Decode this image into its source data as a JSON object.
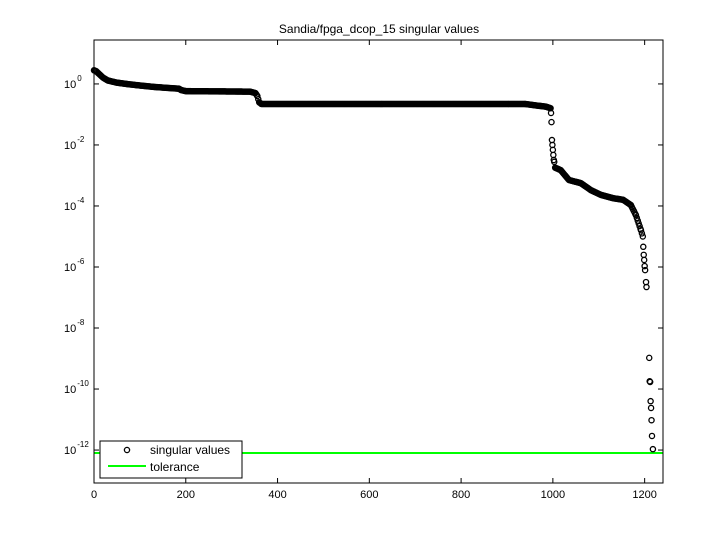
{
  "chart_data": {
    "type": "scatter",
    "title": "Sandia/fpga_dcop_15 singular values",
    "xlabel": "",
    "ylabel": "",
    "xlim": [
      0,
      1240
    ],
    "ylim_log10": [
      -13.08,
      1.44
    ],
    "yscale": "log",
    "grid": false,
    "legend_placement": "bottom-left",
    "x_ticks": [
      0,
      200,
      400,
      600,
      800,
      1000,
      1200
    ],
    "y_tick_exponents": [
      0,
      -2,
      -4,
      -6,
      -8,
      -10,
      -12
    ],
    "colors": {
      "singular_values": "#000000",
      "tolerance": "#00ff00"
    },
    "series": [
      {
        "name": "singular values",
        "marker": "circle-open",
        "points": [
          [
            0,
            2.8
          ],
          [
            5,
            2.6
          ],
          [
            10,
            2.2
          ],
          [
            20,
            1.6
          ],
          [
            30,
            1.3
          ],
          [
            50,
            1.1
          ],
          [
            70,
            1.0
          ],
          [
            100,
            0.89
          ],
          [
            130,
            0.8
          ],
          [
            150,
            0.76
          ],
          [
            185,
            0.7
          ],
          [
            190,
            0.63
          ],
          [
            200,
            0.58
          ],
          [
            340,
            0.56
          ],
          [
            352,
            0.5
          ],
          [
            356,
            0.4
          ],
          [
            360,
            0.25
          ],
          [
            365,
            0.22
          ],
          [
            940,
            0.22
          ],
          [
            960,
            0.2
          ],
          [
            985,
            0.18
          ],
          [
            995,
            0.16
          ],
          [
            996,
            0.112
          ],
          [
            997,
            0.056
          ],
          [
            998,
            0.0145
          ],
          [
            999,
            0.01
          ],
          [
            1000,
            0.0069
          ],
          [
            1001,
            0.0047
          ],
          [
            1002,
            0.0032
          ],
          [
            1003,
            0.0028
          ],
          [
            1005,
            0.0018
          ],
          [
            1017,
            0.0015
          ],
          [
            1035,
            0.00071
          ],
          [
            1061,
            0.00056
          ],
          [
            1083,
            0.00033
          ],
          [
            1105,
            0.00023
          ],
          [
            1131,
            0.00018
          ],
          [
            1153,
            0.00016
          ],
          [
            1170,
            0.000107
          ],
          [
            1181,
            5e-05
          ],
          [
            1192,
            1.6e-05
          ],
          [
            1196,
            1e-05
          ],
          [
            1197,
            4.6e-06
          ],
          [
            1198,
            2.5e-06
          ],
          [
            1199,
            1.7e-06
          ],
          [
            1200,
            1.07e-06
          ],
          [
            1201,
            7.9e-07
          ],
          [
            1203,
            3.2e-07
          ],
          [
            1204,
            2.2e-07
          ],
          [
            1210,
            1.05e-09
          ],
          [
            1211,
            1.8e-10
          ],
          [
            1212,
            1.7e-10
          ],
          [
            1213,
            4e-11
          ],
          [
            1214,
            2.4e-11
          ],
          [
            1215,
            9.5e-12
          ],
          [
            1216,
            2.9e-12
          ],
          [
            1218,
            1.07e-12
          ]
        ]
      },
      {
        "name": "tolerance",
        "type": "line",
        "value": 8e-13
      }
    ]
  }
}
